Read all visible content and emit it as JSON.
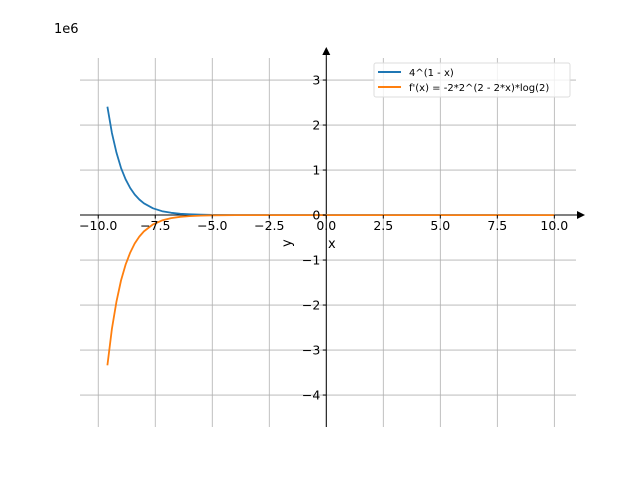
{
  "chart_data": {
    "type": "line",
    "title": "",
    "xlabel": "x",
    "ylabel": "y",
    "offset_text": "1e6",
    "xlim": [
      -10.8,
      10.95
    ],
    "ylim": [
      -4710000,
      3490000
    ],
    "grid": true,
    "legend_position": "top-right",
    "xticks": [
      -10,
      -7.5,
      -5,
      -2.5,
      0,
      2.5,
      5,
      7.5,
      10
    ],
    "xtick_labels": [
      "−10.0",
      "−7.5",
      "−5.0",
      "−2.5",
      "0.0",
      "2.5",
      "5.0",
      "7.5",
      "10.0"
    ],
    "yticks": [
      -4000000,
      -3000000,
      -2000000,
      -1000000,
      0,
      1000000,
      2000000,
      3000000
    ],
    "ytick_labels": [
      "−4",
      "−3",
      "−2",
      "−1",
      "0",
      "1",
      "2",
      "3"
    ],
    "x": [
      -9.6,
      -9.4,
      -9.2,
      -9.0,
      -8.8,
      -8.6,
      -8.4,
      -8.2,
      -8.0,
      -7.6,
      -7.2,
      -6.8,
      -6.4,
      -6.0,
      -5.5,
      -5,
      -4,
      -3,
      -2,
      0,
      2.5,
      5,
      7.5,
      10
    ],
    "series": [
      {
        "name": "4^(1 - x)",
        "color": "#1f77b4",
        "values": [
          2408600,
          1825600,
          1383600,
          1048576,
          794600,
          602200,
          456400,
          345900,
          262144,
          150540,
          86475,
          49660,
          28525,
          16384,
          8192,
          4096,
          1024,
          256,
          64,
          4,
          0.125,
          0.0039,
          0.0001,
          0
        ]
      },
      {
        "name": "f'(x) = -2*2^(2 - 2*x)*log(2)",
        "color": "#ff7f0e",
        "values": [
          -3339000,
          -2531000,
          -1918000,
          -1453600,
          -1101600,
          -834800,
          -632700,
          -479500,
          -363400,
          -208700,
          -119900,
          -68840,
          -39540,
          -22710,
          -11357,
          -5678,
          -1420,
          -355,
          -88.7,
          -5.55,
          -0.173,
          -0.0054,
          -0.0002,
          0
        ]
      }
    ]
  }
}
